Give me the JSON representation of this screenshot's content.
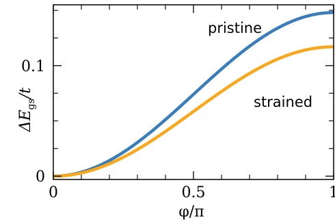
{
  "chart_data": {
    "type": "line",
    "title": "",
    "xlabel": "φ/π",
    "ylabel": {
      "base": "ΔE",
      "sub": "gs",
      "tail": "/t"
    },
    "xlim": [
      0,
      1
    ],
    "ylim": [
      -0.003,
      0.155
    ],
    "x_ticks": [
      0,
      0.5,
      1
    ],
    "x_tick_labels": [
      "0",
      "0.5",
      "1"
    ],
    "y_ticks": [
      0,
      0.1
    ],
    "y_tick_labels": [
      "0",
      "0.1"
    ],
    "y_minor_ticks": [
      0.025,
      0.05,
      0.075,
      0.125,
      0.15
    ],
    "x_minor_ticks": [
      0.1,
      0.2,
      0.3,
      0.4,
      0.6,
      0.7,
      0.8,
      0.9
    ],
    "grid": false,
    "legend": "none",
    "series": [
      {
        "name": "pristine",
        "color": "#3a7dbb",
        "amplitude": 0.148
      },
      {
        "name": "strained",
        "color": "#f9a81b",
        "amplitude": 0.117
      }
    ]
  }
}
